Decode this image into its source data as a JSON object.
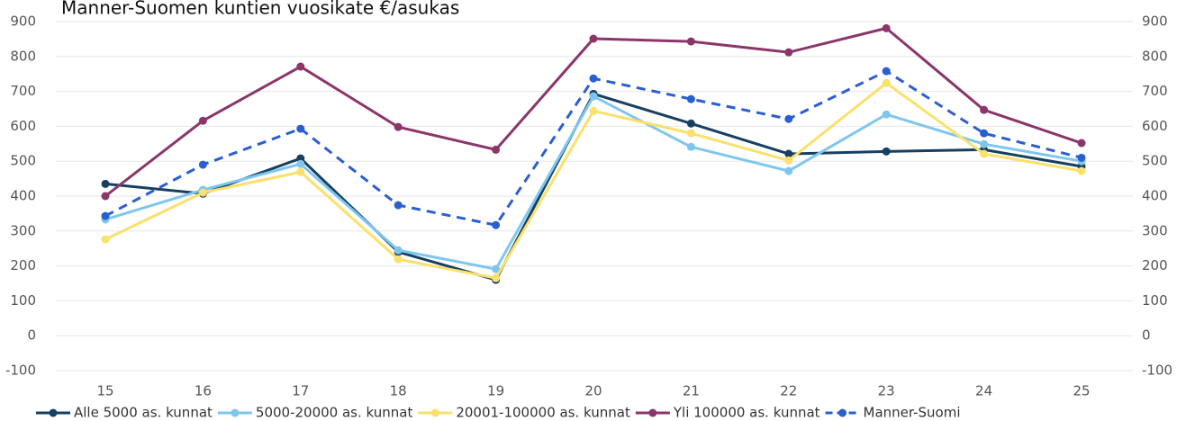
{
  "chart_data": {
    "type": "line",
    "title": "Manner-Suomen kuntien vuosikate €/asukas",
    "categories": [
      "15",
      "16",
      "17",
      "18",
      "19",
      "20",
      "21",
      "22",
      "23",
      "24",
      "25"
    ],
    "series": [
      {
        "name": "Alle 5000 as. kunnat",
        "color": "#173f5f",
        "values": [
          435,
          407,
          508,
          240,
          160,
          693,
          608,
          521,
          528,
          533,
          485
        ]
      },
      {
        "name": "5000-20000 as. kunnat",
        "color": "#7fc6ef",
        "values": [
          333,
          418,
          492,
          245,
          191,
          686,
          541,
          472,
          634,
          549,
          500
        ]
      },
      {
        "name": "20001-100000 as. kunnat",
        "color": "#fbe06c",
        "values": [
          276,
          410,
          469,
          219,
          165,
          644,
          580,
          502,
          724,
          521,
          472
        ]
      },
      {
        "name": "Yli 100000 as. kunnat",
        "color": "#8b3669",
        "values": [
          400,
          616,
          771,
          598,
          533,
          851,
          843,
          812,
          881,
          647,
          552
        ]
      },
      {
        "name": "Manner-Suomi",
        "color": "#2b5fd0",
        "dashed": true,
        "values": [
          343,
          490,
          593,
          374,
          317,
          737,
          678,
          621,
          758,
          580,
          510
        ]
      }
    ],
    "ylim": [
      -100,
      900
    ],
    "yticks": [
      -100,
      0,
      100,
      200,
      300,
      400,
      500,
      600,
      700,
      800,
      900
    ],
    "y2lim": [
      -100,
      900
    ],
    "y2ticks": [
      -100,
      0,
      100,
      200,
      300,
      400,
      500,
      600,
      700,
      800,
      900
    ],
    "grid": true,
    "legend": "bottom"
  }
}
